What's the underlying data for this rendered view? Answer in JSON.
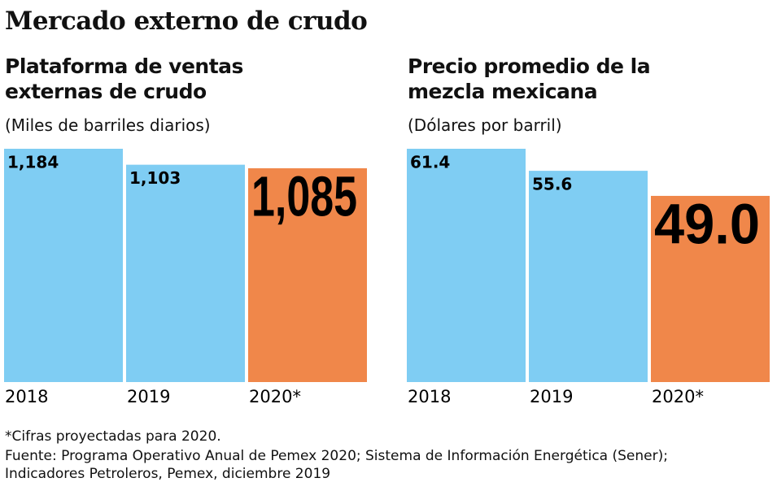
{
  "title": "Mercado externo de crudo",
  "chart_data": [
    {
      "type": "bar",
      "title": "Plataforma de ventas externas de crudo",
      "subtitle": "(Miles de barriles diarios)",
      "categories": [
        "2018",
        "2019",
        "2020*"
      ],
      "values": [
        1184,
        1103,
        1085
      ],
      "value_labels": [
        "1,184",
        "1,103",
        "1,085"
      ],
      "colors": [
        "#7fcdf3",
        "#7fcdf3",
        "#f0874a"
      ],
      "ylim": [
        0,
        1184
      ]
    },
    {
      "type": "bar",
      "title": "Precio promedio de la mezcla mexicana",
      "subtitle": "(Dólares por barril)",
      "categories": [
        "2018",
        "2019",
        "2020*"
      ],
      "values": [
        61.4,
        55.6,
        49.0
      ],
      "value_labels": [
        "61.4",
        "55.6",
        "49.0"
      ],
      "colors": [
        "#7fcdf3",
        "#7fcdf3",
        "#f0874a"
      ],
      "ylim": [
        0,
        61.4
      ]
    }
  ],
  "footnote": "*Cifras proyectadas para 2020.",
  "source": "Fuente: Programa Operativo Anual de Pemex 2020; Sistema de Información Energética (Sener); Indicadores Petroleros, Pemex, diciembre 2019"
}
